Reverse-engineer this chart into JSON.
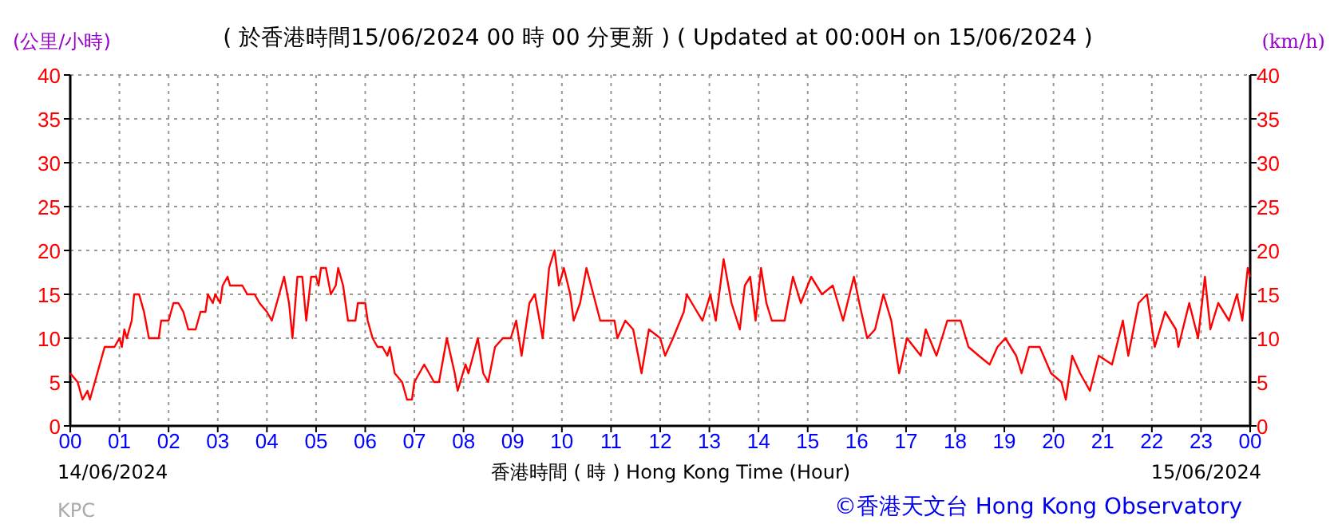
{
  "chart_data": {
    "type": "line",
    "title": "( 於香港時間15/06/2024 00 時 00 分更新 ) ( Updated at 00:00H on 15/06/2024 )",
    "ylabel": "(公里/小時)",
    "y2label": "(km/h)",
    "xlabel": "香港時間 ( 時 )  Hong Kong Time (Hour)",
    "annotations": [
      "14/06/2024",
      "15/06/2024",
      "KPC",
      "©香港天文台 Hong Kong Observatory"
    ],
    "xlim": [
      0,
      24
    ],
    "xticks": [
      {
        "value": 0,
        "label": "00"
      },
      {
        "value": 1,
        "label": "01"
      },
      {
        "value": 2,
        "label": "02"
      },
      {
        "value": 3,
        "label": "03"
      },
      {
        "value": 4,
        "label": "04"
      },
      {
        "value": 5,
        "label": "05"
      },
      {
        "value": 6,
        "label": "06"
      },
      {
        "value": 7,
        "label": "07"
      },
      {
        "value": 8,
        "label": "08"
      },
      {
        "value": 9,
        "label": "09"
      },
      10,
      11,
      12,
      13,
      14,
      15,
      16,
      17,
      18,
      19,
      20,
      21,
      22,
      23,
      {
        "value": 24,
        "label": "00"
      }
    ],
    "ylim": [
      0,
      40
    ],
    "yticks": [
      0,
      5,
      10,
      15,
      20,
      25,
      30,
      35,
      40
    ],
    "y2lim": [
      0,
      40
    ],
    "y2ticks": [
      0,
      5,
      10,
      15,
      20,
      25,
      30,
      35,
      40
    ],
    "grid": true,
    "line_style": "solid",
    "marker": "none",
    "series": [
      {
        "color": "#ff0000",
        "x": [
          0,
          0.15,
          0.25,
          0.35,
          0.4,
          0.5,
          0.6,
          0.7,
          0.9,
          1.0,
          1.05,
          1.1,
          1.15,
          1.25,
          1.3,
          1.4,
          1.5,
          1.6,
          1.8,
          1.85,
          2.0,
          2.1,
          2.2,
          2.3,
          2.4,
          2.55,
          2.65,
          2.75,
          2.8,
          2.9,
          2.95,
          3.05,
          3.1,
          3.2,
          3.25,
          3.5,
          3.6,
          3.75,
          3.85,
          4.0,
          4.1,
          4.2,
          4.35,
          4.45,
          4.52,
          4.62,
          4.72,
          4.8,
          4.9,
          5.0,
          5.05,
          5.1,
          5.2,
          5.3,
          5.4,
          5.45,
          5.55,
          5.65,
          5.8,
          5.85,
          6.0,
          6.05,
          6.15,
          6.25,
          6.35,
          6.45,
          6.5,
          6.6,
          6.75,
          6.85,
          6.95,
          7.0,
          7.1,
          7.2,
          7.3,
          7.4,
          7.5,
          7.66,
          7.82,
          7.88,
          8.04,
          8.1,
          8.29,
          8.4,
          8.5,
          8.64,
          8.8,
          8.96,
          9.07,
          9.18,
          9.34,
          9.45,
          9.61,
          9.74,
          9.85,
          9.94,
          10.04,
          10.17,
          10.24,
          10.37,
          10.5,
          10.64,
          10.78,
          11.07,
          11.13,
          11.29,
          11.45,
          11.62,
          11.77,
          12.0,
          12.1,
          12.26,
          12.48,
          12.54,
          12.75,
          12.86,
          13.02,
          13.13,
          13.29,
          13.45,
          13.62,
          13.72,
          13.83,
          13.94,
          14.05,
          14.16,
          14.27,
          14.53,
          14.7,
          14.86,
          15.07,
          15.29,
          15.51,
          15.72,
          15.94,
          16.05,
          16.21,
          16.37,
          16.54,
          16.7,
          16.86,
          17.02,
          17.3,
          17.4,
          17.62,
          17.84,
          18.11,
          18.27,
          18.48,
          18.7,
          18.86,
          19.02,
          19.24,
          19.35,
          19.5,
          19.72,
          19.95,
          20.16,
          20.25,
          20.38,
          20.54,
          20.74,
          20.92,
          21.19,
          21.41,
          21.52,
          21.73,
          21.9,
          22.06,
          22.27,
          22.49,
          22.54,
          22.76,
          22.94,
          23.08,
          23.19,
          23.35,
          23.57,
          23.73,
          23.84,
          23.95,
          24.0
        ],
        "values": [
          6,
          5,
          3,
          4,
          3,
          5,
          7,
          9,
          9,
          10,
          9,
          11,
          10,
          12,
          15,
          15,
          13,
          10,
          10,
          12,
          12,
          14,
          14,
          13,
          11,
          11,
          13,
          13,
          15,
          14,
          15,
          14,
          16,
          17,
          16,
          16,
          15,
          15,
          14,
          13,
          12,
          14,
          17,
          14,
          10,
          17,
          17,
          12,
          17,
          17,
          16,
          18,
          18,
          15,
          16,
          18,
          16,
          12,
          12,
          14,
          14,
          12,
          10,
          9,
          9,
          8,
          9,
          6,
          5,
          3,
          3,
          5,
          6,
          7,
          6,
          5,
          5,
          10,
          6,
          4,
          7,
          6,
          10,
          6,
          5,
          9,
          10,
          10,
          12,
          8,
          14,
          15,
          10,
          18,
          20,
          16,
          18,
          15,
          12,
          14,
          18,
          15,
          12,
          12,
          10,
          12,
          11,
          6,
          11,
          10,
          8,
          10,
          13,
          15,
          13,
          12,
          15,
          12,
          19,
          14,
          11,
          16,
          17,
          12,
          18,
          14,
          12,
          12,
          17,
          14,
          17,
          15,
          16,
          12,
          17,
          14,
          10,
          11,
          15,
          12,
          6,
          10,
          8,
          11,
          8,
          12,
          12,
          9,
          8,
          7,
          9,
          10,
          8,
          6,
          9,
          9,
          6,
          5,
          3,
          8,
          6,
          4,
          8,
          7,
          12,
          8,
          14,
          15,
          9,
          13,
          11,
          9,
          14,
          10,
          17,
          11,
          14,
          12,
          15,
          12,
          18,
          17
        ]
      }
    ]
  }
}
